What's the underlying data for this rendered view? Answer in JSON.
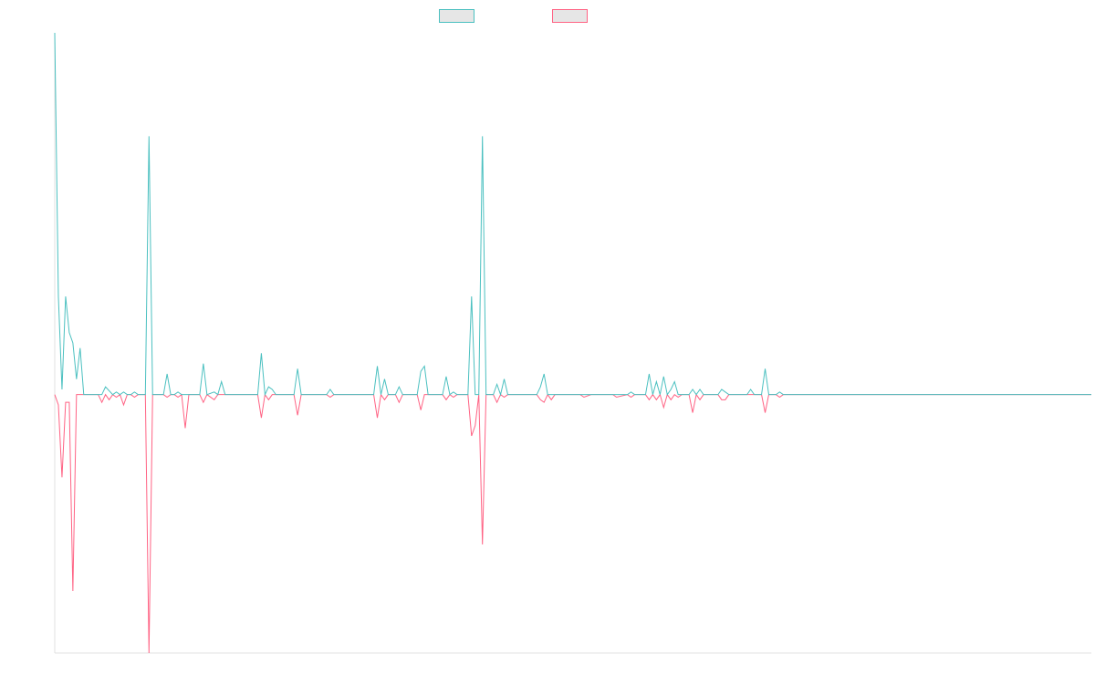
{
  "legend": {
    "placement": "top-center",
    "items": [
      {
        "name": "",
        "stroke": "#4bc0c0",
        "fill": "#e6e6e6"
      },
      {
        "name": "",
        "stroke": "#ff6384",
        "fill": "#e6e6e6"
      }
    ]
  },
  "chart_data": {
    "type": "line",
    "title": "",
    "xlabel": "",
    "ylabel": "",
    "grid": false,
    "ticks_visible": false,
    "point_count": 287,
    "ylim": [
      -1.0,
      1.4
    ],
    "series": [
      {
        "name": "",
        "color": "#4bc0c0",
        "fill": false,
        "points": [
          [
            0,
            1.4
          ],
          [
            1,
            0.38
          ],
          [
            2,
            0.02
          ],
          [
            3,
            0.38
          ],
          [
            4,
            0.24
          ],
          [
            5,
            0.2
          ],
          [
            6,
            0.06
          ],
          [
            7,
            0.18
          ],
          [
            8,
            0.0
          ],
          [
            12,
            0.0
          ],
          [
            13,
            0.0
          ],
          [
            14,
            0.03
          ],
          [
            16,
            0.0
          ],
          [
            17,
            0.01
          ],
          [
            18,
            0.0
          ],
          [
            19,
            0.01
          ],
          [
            20,
            0.0
          ],
          [
            21,
            0.0
          ],
          [
            22,
            0.01
          ],
          [
            23,
            0.0
          ],
          [
            25,
            0.0
          ],
          [
            26,
            1.0
          ],
          [
            27,
            0.0
          ],
          [
            30,
            0.0
          ],
          [
            31,
            0.08
          ],
          [
            32,
            0.0
          ],
          [
            33,
            0.0
          ],
          [
            34,
            0.01
          ],
          [
            35,
            0.0
          ],
          [
            36,
            0.0
          ],
          [
            40,
            0.0
          ],
          [
            41,
            0.12
          ],
          [
            42,
            0.0
          ],
          [
            44,
            0.01
          ],
          [
            45,
            0.0
          ],
          [
            46,
            0.05
          ],
          [
            47,
            0.0
          ],
          [
            56,
            0.0
          ],
          [
            57,
            0.16
          ],
          [
            58,
            0.0
          ],
          [
            59,
            0.03
          ],
          [
            60,
            0.02
          ],
          [
            61,
            0.0
          ],
          [
            66,
            0.0
          ],
          [
            67,
            0.1
          ],
          [
            68,
            0.0
          ],
          [
            75,
            0.0
          ],
          [
            76,
            0.02
          ],
          [
            77,
            0.0
          ],
          [
            88,
            0.0
          ],
          [
            89,
            0.11
          ],
          [
            90,
            0.0
          ],
          [
            91,
            0.06
          ],
          [
            92,
            0.0
          ],
          [
            94,
            0.0
          ],
          [
            95,
            0.03
          ],
          [
            96,
            0.0
          ],
          [
            100,
            0.0
          ],
          [
            101,
            0.09
          ],
          [
            102,
            0.11
          ],
          [
            103,
            0.0
          ],
          [
            107,
            0.0
          ],
          [
            108,
            0.07
          ],
          [
            109,
            0.0
          ],
          [
            110,
            0.01
          ],
          [
            111,
            0.0
          ],
          [
            114,
            0.0
          ],
          [
            115,
            0.38
          ],
          [
            116,
            0.0
          ],
          [
            117,
            0.0
          ],
          [
            118,
            1.0
          ],
          [
            119,
            0.0
          ],
          [
            121,
            0.0
          ],
          [
            122,
            0.04
          ],
          [
            123,
            0.0
          ],
          [
            124,
            0.06
          ],
          [
            125,
            0.0
          ],
          [
            133,
            0.0
          ],
          [
            134,
            0.03
          ],
          [
            135,
            0.08
          ],
          [
            136,
            0.0
          ],
          [
            137,
            0.0
          ],
          [
            138,
            0.0
          ],
          [
            145,
            0.0
          ],
          [
            146,
            0.0
          ],
          [
            148,
            0.0
          ],
          [
            150,
            0.0
          ],
          [
            154,
            0.0
          ],
          [
            155,
            0.0
          ],
          [
            158,
            0.0
          ],
          [
            159,
            0.01
          ],
          [
            160,
            0.0
          ],
          [
            161,
            0.0
          ],
          [
            163,
            0.0
          ],
          [
            164,
            0.08
          ],
          [
            165,
            0.0
          ],
          [
            166,
            0.05
          ],
          [
            167,
            0.0
          ],
          [
            168,
            0.07
          ],
          [
            169,
            0.0
          ],
          [
            170,
            0.02
          ],
          [
            171,
            0.05
          ],
          [
            172,
            0.0
          ],
          [
            173,
            0.0
          ],
          [
            174,
            0.0
          ],
          [
            175,
            0.0
          ],
          [
            176,
            0.02
          ],
          [
            177,
            0.0
          ],
          [
            178,
            0.02
          ],
          [
            179,
            0.0
          ],
          [
            183,
            0.0
          ],
          [
            184,
            0.02
          ],
          [
            185,
            0.01
          ],
          [
            186,
            0.0
          ],
          [
            191,
            0.0
          ],
          [
            192,
            0.02
          ],
          [
            193,
            0.0
          ],
          [
            195,
            0.0
          ],
          [
            196,
            0.1
          ],
          [
            197,
            0.0
          ],
          [
            199,
            0.0
          ],
          [
            200,
            0.01
          ],
          [
            201,
            0.0
          ],
          [
            286,
            0.0
          ]
        ]
      },
      {
        "name": "",
        "color": "#ff6384",
        "fill": false,
        "points": [
          [
            0,
            0.0
          ],
          [
            1,
            -0.04
          ],
          [
            2,
            -0.32
          ],
          [
            3,
            -0.03
          ],
          [
            4,
            -0.03
          ],
          [
            5,
            -0.76
          ],
          [
            6,
            0.0
          ],
          [
            12,
            0.0
          ],
          [
            13,
            -0.03
          ],
          [
            14,
            0.0
          ],
          [
            15,
            -0.02
          ],
          [
            16,
            0.0
          ],
          [
            17,
            -0.01
          ],
          [
            18,
            0.0
          ],
          [
            19,
            -0.04
          ],
          [
            20,
            0.0
          ],
          [
            21,
            0.0
          ],
          [
            22,
            -0.01
          ],
          [
            23,
            0.0
          ],
          [
            25,
            0.0
          ],
          [
            26,
            -1.0
          ],
          [
            27,
            0.0
          ],
          [
            30,
            0.0
          ],
          [
            31,
            -0.01
          ],
          [
            32,
            0.0
          ],
          [
            33,
            0.0
          ],
          [
            34,
            -0.01
          ],
          [
            35,
            0.0
          ],
          [
            36,
            -0.13
          ],
          [
            37,
            0.0
          ],
          [
            40,
            0.0
          ],
          [
            41,
            -0.03
          ],
          [
            42,
            0.0
          ],
          [
            44,
            -0.02
          ],
          [
            45,
            0.0
          ],
          [
            56,
            0.0
          ],
          [
            57,
            -0.09
          ],
          [
            58,
            0.0
          ],
          [
            59,
            -0.02
          ],
          [
            60,
            0.0
          ],
          [
            66,
            0.0
          ],
          [
            67,
            -0.08
          ],
          [
            68,
            0.0
          ],
          [
            75,
            0.0
          ],
          [
            76,
            -0.01
          ],
          [
            77,
            0.0
          ],
          [
            88,
            0.0
          ],
          [
            89,
            -0.09
          ],
          [
            90,
            0.0
          ],
          [
            91,
            -0.02
          ],
          [
            92,
            0.0
          ],
          [
            94,
            0.0
          ],
          [
            95,
            -0.03
          ],
          [
            96,
            0.0
          ],
          [
            100,
            0.0
          ],
          [
            101,
            -0.06
          ],
          [
            102,
            0.0
          ],
          [
            107,
            0.0
          ],
          [
            108,
            -0.02
          ],
          [
            109,
            0.0
          ],
          [
            110,
            -0.01
          ],
          [
            111,
            0.0
          ],
          [
            114,
            0.0
          ],
          [
            115,
            -0.16
          ],
          [
            116,
            -0.12
          ],
          [
            117,
            0.0
          ],
          [
            118,
            -0.58
          ],
          [
            119,
            0.0
          ],
          [
            121,
            0.0
          ],
          [
            122,
            -0.03
          ],
          [
            123,
            0.0
          ],
          [
            124,
            -0.01
          ],
          [
            125,
            0.0
          ],
          [
            133,
            0.0
          ],
          [
            134,
            -0.02
          ],
          [
            135,
            -0.03
          ],
          [
            136,
            0.0
          ],
          [
            137,
            -0.02
          ],
          [
            138,
            0.0
          ],
          [
            145,
            0.0
          ],
          [
            146,
            -0.01
          ],
          [
            148,
            0.0
          ],
          [
            150,
            0.0
          ],
          [
            154,
            0.0
          ],
          [
            155,
            -0.01
          ],
          [
            158,
            0.0
          ],
          [
            159,
            -0.01
          ],
          [
            160,
            0.0
          ],
          [
            163,
            0.0
          ],
          [
            164,
            -0.02
          ],
          [
            165,
            0.0
          ],
          [
            166,
            -0.02
          ],
          [
            167,
            0.0
          ],
          [
            168,
            -0.05
          ],
          [
            169,
            0.0
          ],
          [
            170,
            -0.02
          ],
          [
            171,
            0.0
          ],
          [
            172,
            -0.01
          ],
          [
            173,
            0.0
          ],
          [
            175,
            0.0
          ],
          [
            176,
            -0.07
          ],
          [
            177,
            0.0
          ],
          [
            178,
            -0.02
          ],
          [
            179,
            0.0
          ],
          [
            183,
            0.0
          ],
          [
            184,
            -0.02
          ],
          [
            185,
            -0.02
          ],
          [
            186,
            0.0
          ],
          [
            191,
            0.0
          ],
          [
            192,
            0.0
          ],
          [
            193,
            0.0
          ],
          [
            195,
            0.0
          ],
          [
            196,
            -0.07
          ],
          [
            197,
            0.0
          ],
          [
            199,
            0.0
          ],
          [
            200,
            -0.01
          ],
          [
            201,
            0.0
          ],
          [
            286,
            0.0
          ]
        ]
      }
    ]
  }
}
